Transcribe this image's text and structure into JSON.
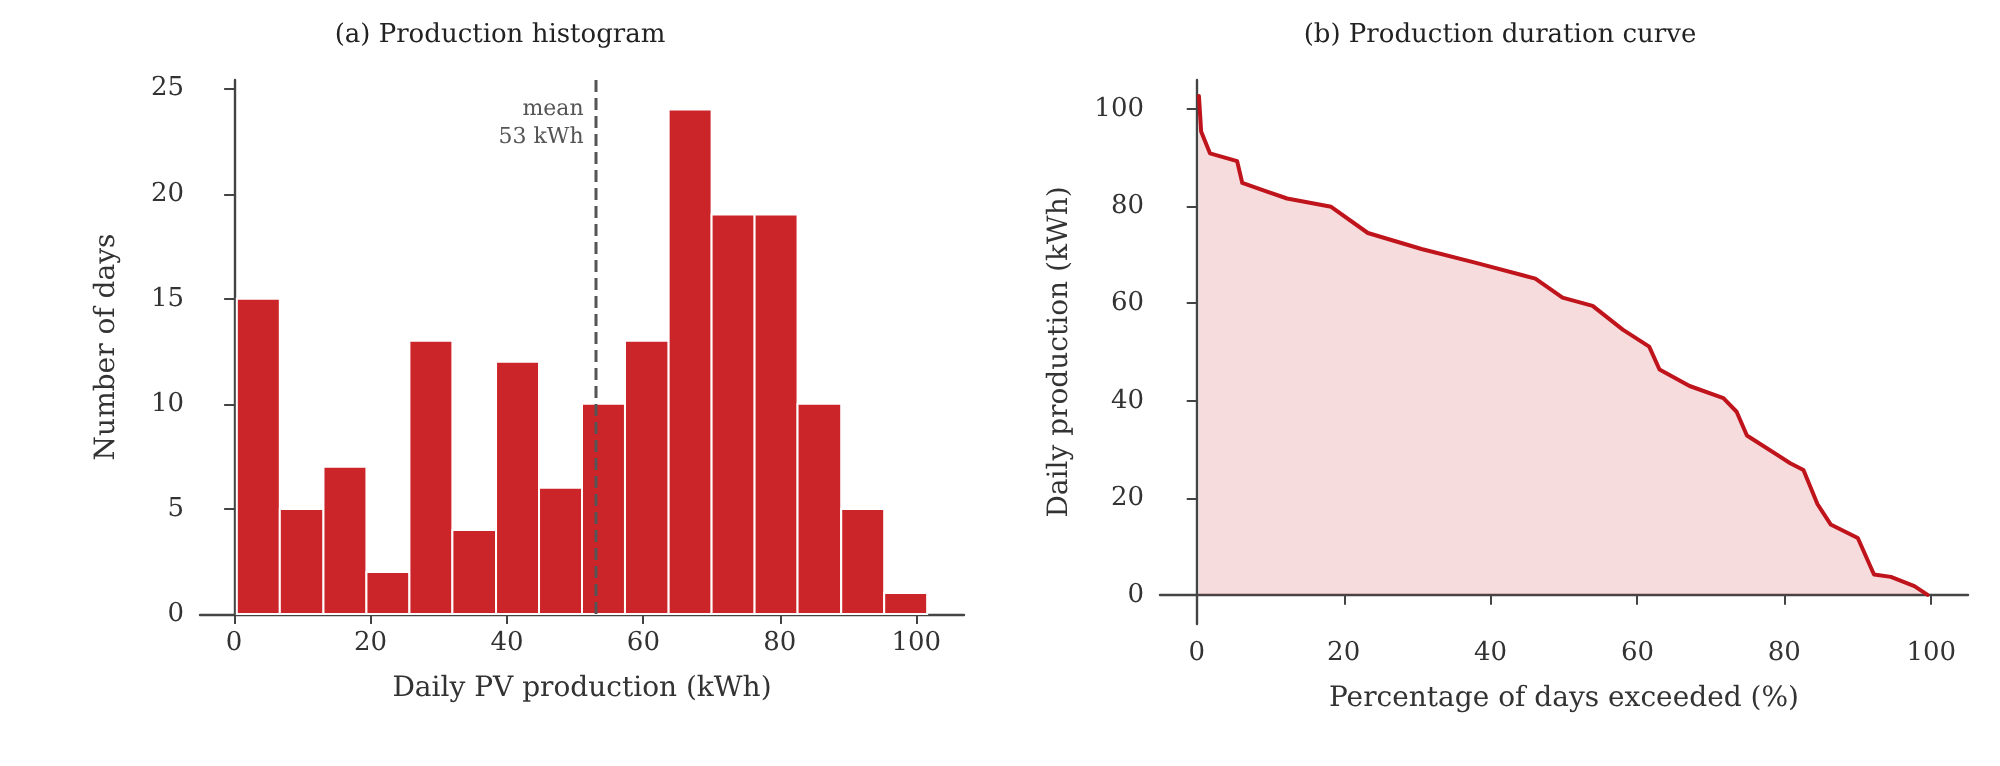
{
  "chart_data": [
    {
      "type": "histogram",
      "title": "(a) Production histogram",
      "xlabel": "Daily PV production (kWh)",
      "ylabel": "Number of days",
      "bins": [
        0.4,
        6.7,
        13.1,
        19.4,
        25.7,
        32.0,
        38.4,
        44.7,
        51.0,
        57.3,
        63.7,
        70.0,
        76.3,
        82.6,
        89.0,
        95.3,
        101.6
      ],
      "values": [
        15,
        5,
        7,
        2,
        13,
        4,
        12,
        6,
        10,
        13,
        24,
        19,
        19,
        10,
        5,
        1
      ],
      "color": "#cc2529",
      "xlim": [
        -5,
        107
      ],
      "ylim": [
        0,
        25.4
      ],
      "xticks": [
        0,
        20,
        40,
        60,
        80,
        100
      ],
      "yticks": [
        0,
        5,
        10,
        15,
        20,
        25
      ],
      "ref_lines": [
        {
          "axis": "x",
          "value": 53,
          "label": "mean\n53 kWh",
          "color": "#555555",
          "line_style": "dashed"
        }
      ]
    },
    {
      "type": "area",
      "title": "(b) Production duration curve",
      "xlabel": "Percentage of days exceeded (%)",
      "ylabel": "Daily production (kWh)",
      "x": [
        0.3,
        0.6,
        1.8,
        5.5,
        6.2,
        12.3,
        18.3,
        23.3,
        30.6,
        37.9,
        46.1,
        49.8,
        53.9,
        58,
        61.6,
        63,
        67.1,
        71.7,
        73.5,
        74.9,
        80.8,
        82.6,
        84.5,
        86.3,
        90,
        92.2,
        94.5,
        97.7,
        99.5
      ],
      "values": [
        102.7,
        95.4,
        90.9,
        89.3,
        84.8,
        81.6,
        79.9,
        74.5,
        71.2,
        68.4,
        65.1,
        61.2,
        59.5,
        54.6,
        51.1,
        46.4,
        43,
        40.5,
        37.7,
        32.8,
        27.1,
        25.7,
        18.7,
        14.5,
        11.7,
        4.2,
        3.7,
        1.8,
        0
      ],
      "color": "#c0141c",
      "xlim": [
        -5,
        105
      ],
      "ylim": [
        -6,
        106
      ],
      "xticks": [
        0,
        20,
        40,
        60,
        80,
        100
      ],
      "yticks": [
        0,
        20,
        40,
        60,
        80,
        100
      ]
    }
  ]
}
